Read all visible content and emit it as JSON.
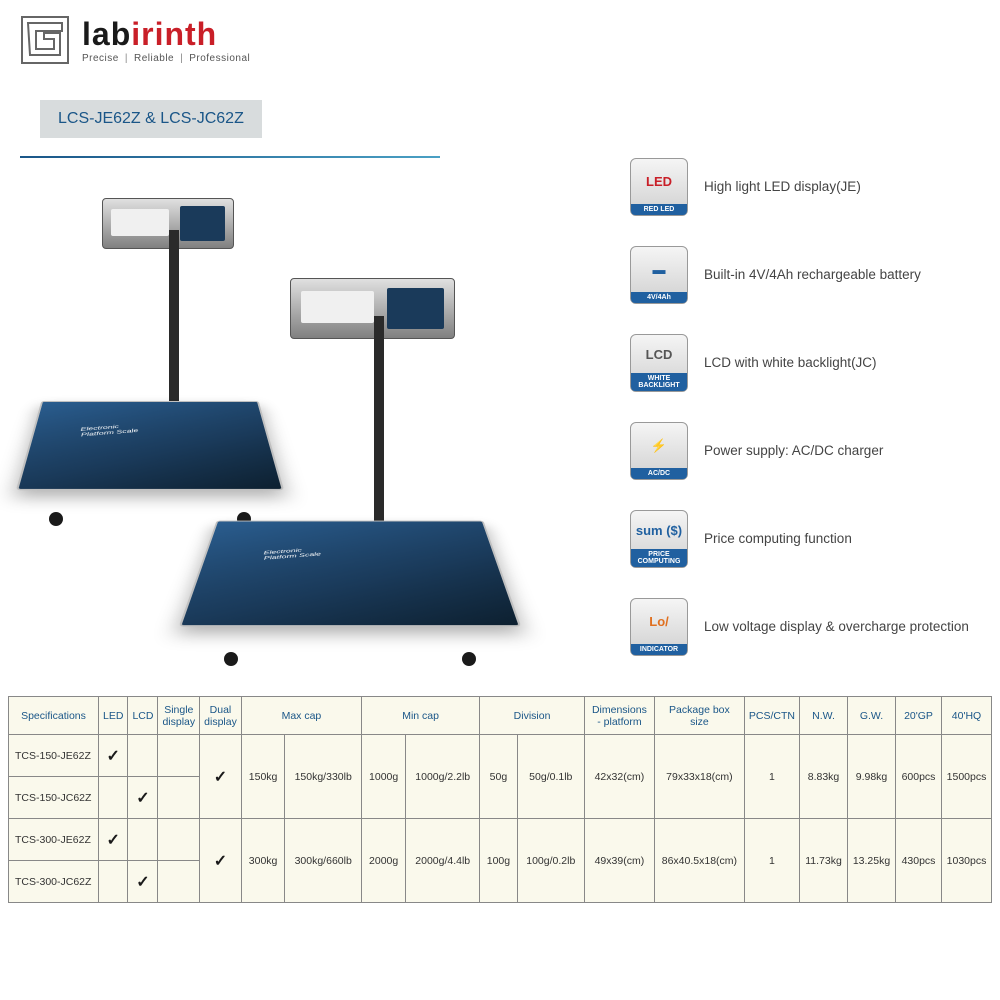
{
  "brand": {
    "part1": "lab",
    "part2": "irinth",
    "tagline1": "Precise",
    "tagline2": "Reliable",
    "tagline3": "Professional"
  },
  "title": "LCS-JE62Z & LCS-JC62Z",
  "platform_label1": "Electronic",
  "platform_label2": "Platform Scale",
  "features": [
    {
      "icon_top": "LED",
      "icon_top_color": "#c91f28",
      "icon_bot": "RED LED",
      "text": "High light LED display(JE)"
    },
    {
      "icon_top": "▬",
      "icon_top_color": "#2060a0",
      "icon_bot": "4V/4Ah",
      "text": "Built-in 4V/4Ah rechargeable battery"
    },
    {
      "icon_top": "LCD",
      "icon_top_color": "#555",
      "icon_bot": "WHITE BACKLIGHT",
      "text": "LCD with white backlight(JC)"
    },
    {
      "icon_top": "⚡",
      "icon_top_color": "#333",
      "icon_bot": "AC/DC",
      "text": "Power supply: AC/DC charger"
    },
    {
      "icon_top": "sum ($)",
      "icon_top_color": "#2060a0",
      "icon_bot": "PRICE COMPUTING",
      "text": "Price computing function"
    },
    {
      "icon_top": "Lo/",
      "icon_top_color": "#e07020",
      "icon_bot": "INDICATOR",
      "text": "Low voltage display & overcharge protection"
    }
  ],
  "table": {
    "headers": [
      "Specifications",
      "LED",
      "LCD",
      "Single display",
      "Dual display",
      "Max cap",
      "",
      "Min cap",
      "",
      "Division",
      "",
      "Dimensions - platform",
      "Package box size",
      "PCS/CTN",
      "N.W.",
      "G.W.",
      "20'GP",
      "40'HQ"
    ],
    "groups": [
      {
        "rows": [
          {
            "spec": "TCS-150-JE62Z",
            "led": true,
            "lcd": false,
            "single": false
          },
          {
            "spec": "TCS-150-JC62Z",
            "led": false,
            "lcd": true,
            "single": false
          }
        ],
        "dual": true,
        "maxcap1": "150kg",
        "maxcap2": "150kg/330lb",
        "mincap1": "1000g",
        "mincap2": "1000g/2.2lb",
        "div1": "50g",
        "div2": "50g/0.1lb",
        "dim": "42x32(cm)",
        "box": "79x33x18(cm)",
        "pcs": "1",
        "nw": "8.83kg",
        "gw": "9.98kg",
        "gp20": "600pcs",
        "hq40": "1500pcs"
      },
      {
        "rows": [
          {
            "spec": "TCS-300-JE62Z",
            "led": true,
            "lcd": false,
            "single": false
          },
          {
            "spec": "TCS-300-JC62Z",
            "led": false,
            "lcd": true,
            "single": false
          }
        ],
        "dual": true,
        "maxcap1": "300kg",
        "maxcap2": "300kg/660lb",
        "mincap1": "2000g",
        "mincap2": "2000g/4.4lb",
        "div1": "100g",
        "div2": "100g/0.2lb",
        "dim": "49x39(cm)",
        "box": "86x40.5x18(cm)",
        "pcs": "1",
        "nw": "11.73kg",
        "gw": "13.25kg",
        "gp20": "430pcs",
        "hq40": "1030pcs"
      }
    ]
  }
}
